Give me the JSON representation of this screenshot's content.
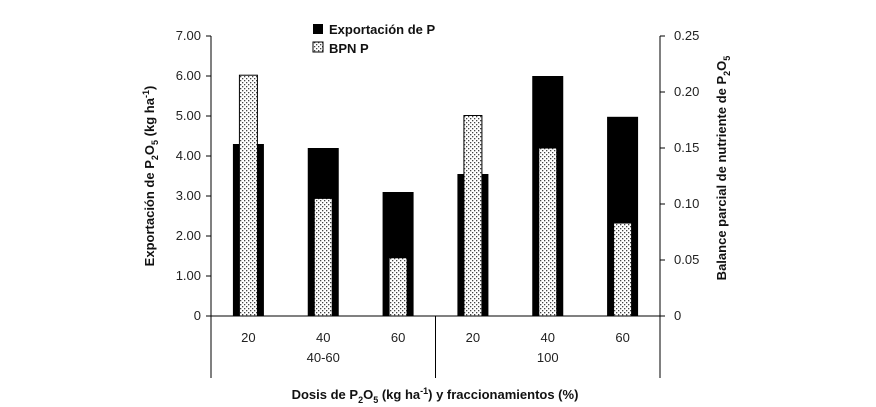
{
  "chart_data": {
    "type": "bar",
    "categories": [
      "20",
      "40",
      "60",
      "20",
      "40",
      "60"
    ],
    "groups": [
      {
        "label": "40-60",
        "indices": [
          0,
          1,
          2
        ]
      },
      {
        "label": "100",
        "indices": [
          3,
          4,
          5
        ]
      }
    ],
    "series": [
      {
        "name": "Exportación de  P",
        "axis": "left",
        "color": "#000000",
        "pattern": "solid",
        "values": [
          4.3,
          4.2,
          3.1,
          3.55,
          6.0,
          4.98
        ]
      },
      {
        "name": "BPN P",
        "axis": "right",
        "color": "#ffffff",
        "pattern": "dotted",
        "values": [
          0.215,
          0.105,
          0.052,
          0.179,
          0.15,
          0.083
        ]
      }
    ],
    "y_left": {
      "label_parts": [
        "Exportación de P",
        "2",
        "O",
        "5",
        " (kg ha",
        "-1",
        ")"
      ],
      "ylim": [
        0,
        7
      ],
      "ticks": [
        0,
        1,
        2,
        3,
        4,
        5,
        6,
        7
      ],
      "tick_labels": [
        "0",
        "1.00",
        "2.00",
        "3.00",
        "4.00",
        "5.00",
        "6.00",
        "7.00"
      ]
    },
    "y_right": {
      "label_parts": [
        "Balance parcial de nutriente de  P",
        "2",
        "O",
        "5"
      ],
      "ylim": [
        0,
        0.25
      ],
      "ticks": [
        0,
        0.05,
        0.1,
        0.15,
        0.2,
        0.25
      ],
      "tick_labels": [
        "0",
        "0.05",
        "0.10",
        "0.15",
        "0.20",
        "0.25"
      ]
    },
    "x_axis": {
      "label_parts": [
        "Dosis de P",
        "2",
        "O",
        "5",
        "  (kg ha",
        "-1",
        ") y fraccionamientos (%)"
      ]
    },
    "legend": {
      "position": "top-center",
      "entries": [
        "Exportación de  P",
        "BPN P"
      ]
    }
  }
}
